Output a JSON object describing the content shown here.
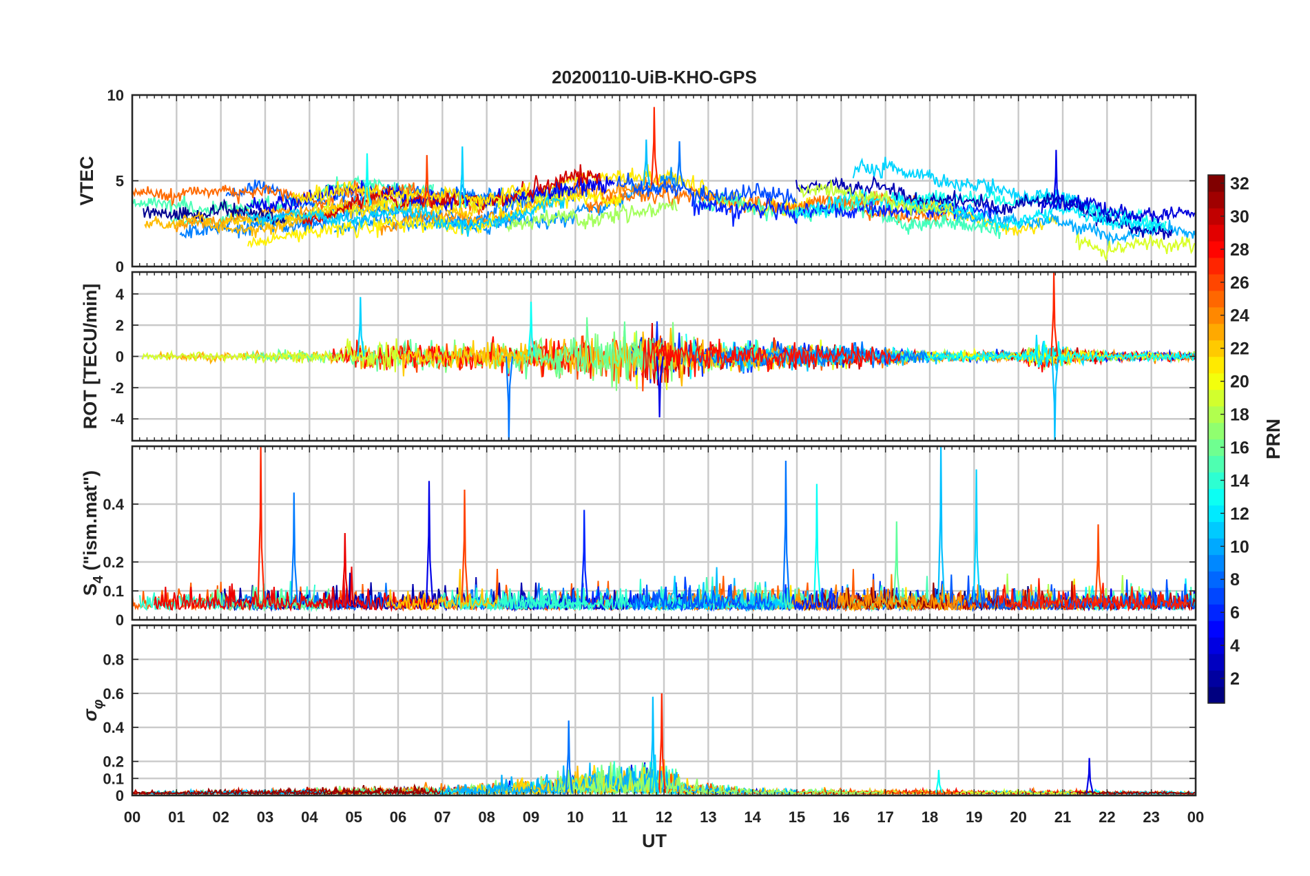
{
  "chart_data": {
    "type": "line",
    "title": "20200110-UiB-KHO-GPS",
    "xlabel": "UT",
    "x_ticks": [
      "00",
      "01",
      "02",
      "03",
      "04",
      "05",
      "06",
      "07",
      "08",
      "09",
      "10",
      "11",
      "12",
      "13",
      "14",
      "15",
      "16",
      "17",
      "18",
      "19",
      "20",
      "21",
      "22",
      "23",
      "00"
    ],
    "xlim_hours": [
      0,
      24
    ],
    "grid": true,
    "series_note": "one trace per satellite, colored by PRN",
    "panels": [
      {
        "name": "vtec",
        "ylabel": "VTEC",
        "ylim": [
          0,
          10
        ],
        "y_ticks": [
          0,
          5,
          10
        ],
        "baseline_by_hour": [
          [
            0,
            2.4
          ],
          [
            2,
            2.6
          ],
          [
            4,
            3.0
          ],
          [
            5,
            3.6
          ],
          [
            6,
            3.5
          ],
          [
            8,
            3.4
          ],
          [
            10,
            4.4
          ],
          [
            12,
            4.8
          ],
          [
            13,
            4.5
          ],
          [
            15,
            3.8
          ],
          [
            17,
            4.0
          ],
          [
            18,
            3.6
          ],
          [
            20,
            3.2
          ],
          [
            21,
            3.4
          ],
          [
            22,
            2.6
          ],
          [
            24,
            2.2
          ]
        ],
        "peaks": [
          [
            11.78,
            9.3
          ],
          [
            11.6,
            7.4
          ],
          [
            12.35,
            7.3
          ],
          [
            7.45,
            7.0
          ],
          [
            20.85,
            6.8
          ],
          [
            5.3,
            6.6
          ],
          [
            6.65,
            6.5
          ]
        ]
      },
      {
        "name": "rot",
        "ylabel": "ROT [TECU/min]",
        "ylim": [
          -5.4,
          5.4
        ],
        "y_ticks": [
          -4,
          -2,
          0,
          2,
          4
        ],
        "grid_lines": [
          -4,
          -2,
          0,
          2,
          4
        ],
        "activity_by_hour": [
          [
            0,
            0.25
          ],
          [
            4.5,
            0.4
          ],
          [
            5,
            1.0
          ],
          [
            7,
            0.9
          ],
          [
            9,
            0.9
          ],
          [
            10,
            1.6
          ],
          [
            12,
            1.8
          ],
          [
            13,
            1.0
          ],
          [
            14,
            0.9
          ],
          [
            16,
            0.8
          ],
          [
            18,
            0.35
          ],
          [
            20,
            0.3
          ],
          [
            20.5,
            0.9
          ],
          [
            22,
            0.3
          ],
          [
            24,
            0.25
          ]
        ],
        "peaks": [
          [
            20.8,
            5.4
          ],
          [
            20.82,
            -5.4
          ],
          [
            8.5,
            -5.4
          ],
          [
            5.15,
            3.8
          ],
          [
            11.9,
            -3.9
          ],
          [
            9.0,
            3.5
          ]
        ]
      },
      {
        "name": "s4",
        "ylabel": "S4 (\"ism.mat\")",
        "ylim": [
          0,
          0.6
        ],
        "y_ticks": [
          0,
          0.1,
          0.2,
          0.4
        ],
        "grid_lines": [
          0.1,
          0.2,
          0.4
        ],
        "baseline_by_hour": [
          [
            0,
            0.06
          ],
          [
            24,
            0.06
          ]
        ],
        "peaks": [
          [
            2.9,
            0.6
          ],
          [
            18.25,
            0.6
          ],
          [
            14.75,
            0.55
          ],
          [
            19.05,
            0.52
          ],
          [
            6.7,
            0.48
          ],
          [
            15.45,
            0.47
          ],
          [
            7.5,
            0.45
          ],
          [
            3.65,
            0.44
          ],
          [
            10.2,
            0.38
          ],
          [
            17.25,
            0.34
          ],
          [
            21.8,
            0.33
          ],
          [
            4.8,
            0.3
          ]
        ]
      },
      {
        "name": "sigma_phi",
        "ylabel": "σφ",
        "ylim": [
          0,
          1
        ],
        "y_ticks": [
          0,
          0.1,
          0.2,
          0.4,
          0.6,
          0.8
        ],
        "grid_lines": [
          0.1,
          0.2,
          0.4,
          0.6,
          0.8
        ],
        "baseline_by_hour": [
          [
            0,
            0.015
          ],
          [
            24,
            0.015
          ]
        ],
        "activity_by_hour": [
          [
            0,
            0.01
          ],
          [
            7,
            0.03
          ],
          [
            9,
            0.06
          ],
          [
            10,
            0.1
          ],
          [
            12,
            0.12
          ],
          [
            12.5,
            0.05
          ],
          [
            14,
            0.02
          ],
          [
            24,
            0.01
          ]
        ],
        "peaks": [
          [
            11.95,
            0.6
          ],
          [
            11.75,
            0.58
          ],
          [
            9.85,
            0.44
          ],
          [
            11.8,
            0.24
          ],
          [
            21.6,
            0.22
          ],
          [
            18.2,
            0.15
          ]
        ]
      }
    ],
    "colorbar": {
      "label": "PRN",
      "range": [
        1,
        32
      ],
      "ticks": [
        2,
        4,
        6,
        8,
        10,
        12,
        14,
        16,
        18,
        20,
        22,
        24,
        26,
        28,
        30,
        32
      ],
      "colormap": "jet"
    }
  }
}
